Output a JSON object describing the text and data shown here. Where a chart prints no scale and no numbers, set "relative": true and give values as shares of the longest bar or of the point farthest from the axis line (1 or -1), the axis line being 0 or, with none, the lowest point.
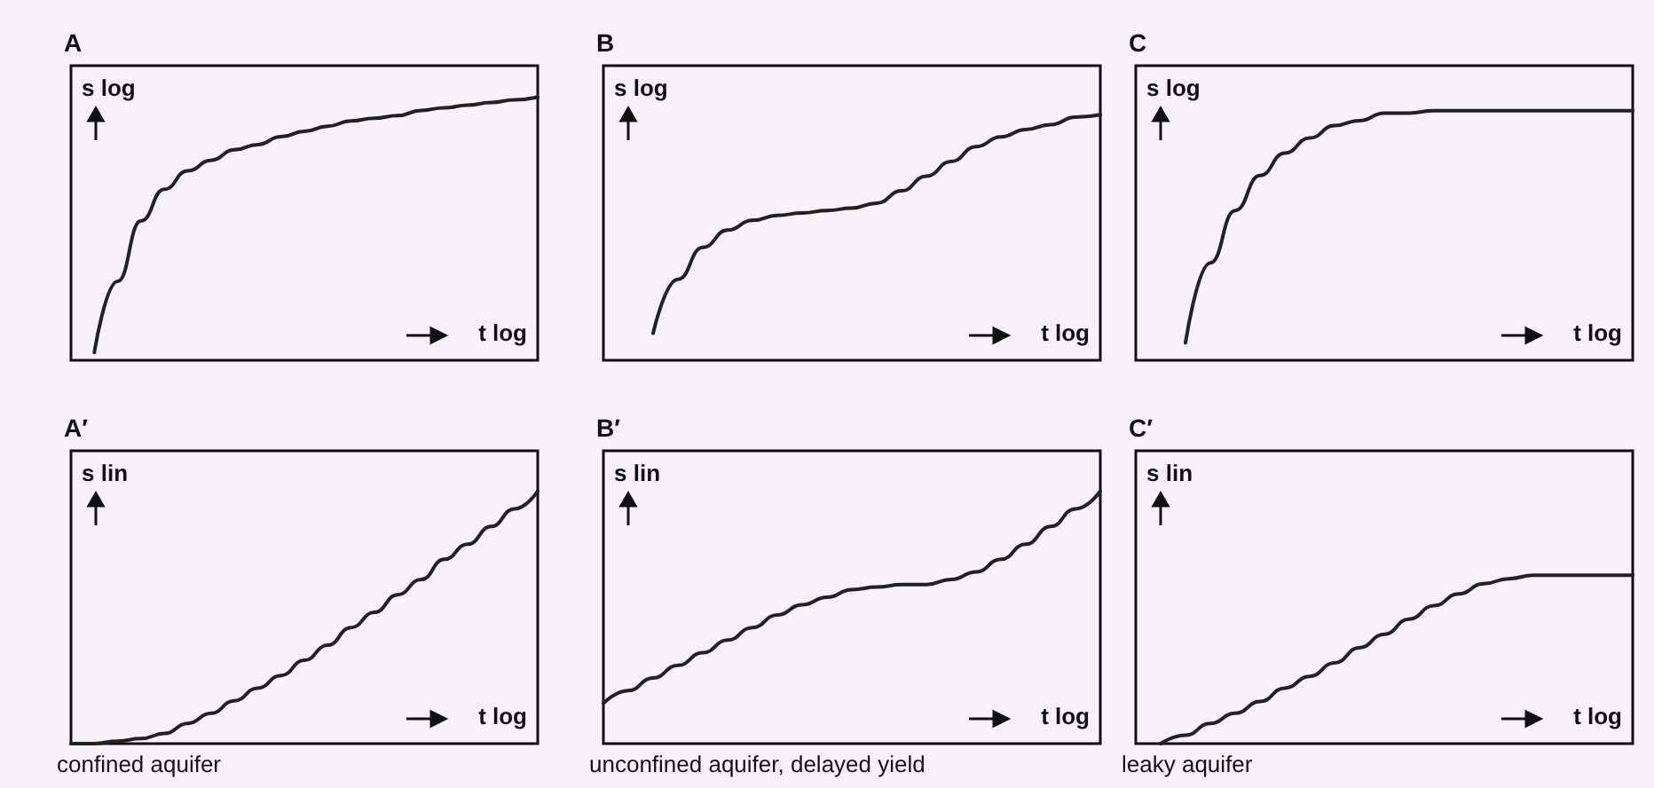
{
  "chart_data": [
    {
      "type": "line",
      "title": "A",
      "ylabel": "s log",
      "xlabel": "t log",
      "relative": true,
      "marker": "none",
      "line_style": "solid",
      "categories": [
        null,
        null,
        null,
        null,
        null,
        null,
        null,
        null,
        null,
        null,
        null,
        null,
        null,
        null,
        null,
        null,
        null,
        null,
        null,
        null,
        null
      ],
      "series": [
        {
          "color": "#222222",
          "values": [
            null,
            0.03,
            0.3,
            0.53,
            0.65,
            0.72,
            0.76,
            0.8,
            0.82,
            0.85,
            0.87,
            0.89,
            0.91,
            0.92,
            0.93,
            0.95,
            0.96,
            0.97,
            0.98,
            0.99,
            1
          ]
        }
      ]
    },
    {
      "type": "line",
      "title": "B",
      "ylabel": "s log",
      "xlabel": "t log",
      "relative": true,
      "marker": "none",
      "line_style": "solid",
      "categories": [
        null,
        null,
        null,
        null,
        null,
        null,
        null,
        null,
        null,
        null,
        null,
        null,
        null,
        null,
        null,
        null,
        null,
        null,
        null,
        null,
        null
      ],
      "series": [
        {
          "color": "#222222",
          "values": [
            null,
            null,
            0.11,
            0.33,
            0.46,
            0.53,
            0.57,
            0.59,
            0.6,
            0.61,
            0.62,
            0.64,
            0.69,
            0.75,
            0.81,
            0.87,
            0.91,
            0.94,
            0.96,
            0.99,
            1
          ]
        }
      ]
    },
    {
      "type": "line",
      "title": "C",
      "ylabel": "s log",
      "xlabel": "t log",
      "relative": true,
      "marker": "none",
      "line_style": "solid",
      "categories": [
        null,
        null,
        null,
        null,
        null,
        null,
        null,
        null,
        null,
        null,
        null,
        null,
        null,
        null,
        null,
        null,
        null,
        null,
        null,
        null,
        null
      ],
      "series": [
        {
          "color": "#222222",
          "values": [
            null,
            null,
            0.07,
            0.39,
            0.6,
            0.74,
            0.83,
            0.89,
            0.94,
            0.96,
            0.99,
            0.99,
            1,
            1,
            1,
            1,
            1,
            1,
            1,
            1,
            1
          ]
        }
      ]
    },
    {
      "type": "line",
      "title": "A′",
      "ylabel": "s lin",
      "xlabel": "t log",
      "relative": true,
      "marker": "none",
      "line_style": "solid",
      "annotations": [
        "confined aquifer"
      ],
      "categories": [
        null,
        null,
        null,
        null,
        null,
        null,
        null,
        null,
        null,
        null,
        null,
        null,
        null,
        null,
        null,
        null,
        null,
        null,
        null,
        null,
        null
      ],
      "series": [
        {
          "color": "#222222",
          "values": [
            0,
            0,
            0.01,
            0.02,
            0.04,
            0.08,
            0.12,
            0.17,
            0.22,
            0.27,
            0.33,
            0.39,
            0.46,
            0.52,
            0.59,
            0.65,
            0.73,
            0.79,
            0.86,
            0.93,
            1
          ]
        }
      ]
    },
    {
      "type": "line",
      "title": "B′",
      "ylabel": "s lin",
      "xlabel": "t log",
      "relative": true,
      "marker": "none",
      "line_style": "solid",
      "annotations": [
        "unconfined aquifer, delayed yield"
      ],
      "categories": [
        null,
        null,
        null,
        null,
        null,
        null,
        null,
        null,
        null,
        null,
        null,
        null,
        null,
        null,
        null,
        null,
        null,
        null,
        null,
        null,
        null
      ],
      "series": [
        {
          "color": "#222222",
          "values": [
            0.16,
            0.21,
            0.26,
            0.31,
            0.36,
            0.41,
            0.46,
            0.51,
            0.55,
            0.58,
            0.61,
            0.62,
            0.63,
            0.63,
            0.65,
            0.68,
            0.73,
            0.79,
            0.86,
            0.93,
            1
          ]
        }
      ]
    },
    {
      "type": "line",
      "title": "C′",
      "ylabel": "s lin",
      "xlabel": "t log",
      "relative": true,
      "marker": "none",
      "line_style": "solid",
      "annotations": [
        "leaky aquifer"
      ],
      "categories": [
        null,
        null,
        null,
        null,
        null,
        null,
        null,
        null,
        null,
        null,
        null,
        null,
        null,
        null,
        null,
        null,
        null,
        null,
        null,
        null,
        null
      ],
      "series": [
        {
          "color": "#222222",
          "values": [
            null,
            0,
            0.05,
            0.12,
            0.18,
            0.25,
            0.33,
            0.4,
            0.48,
            0.57,
            0.65,
            0.74,
            0.82,
            0.89,
            0.95,
            0.98,
            1,
            1,
            1,
            1,
            1
          ]
        }
      ]
    }
  ]
}
